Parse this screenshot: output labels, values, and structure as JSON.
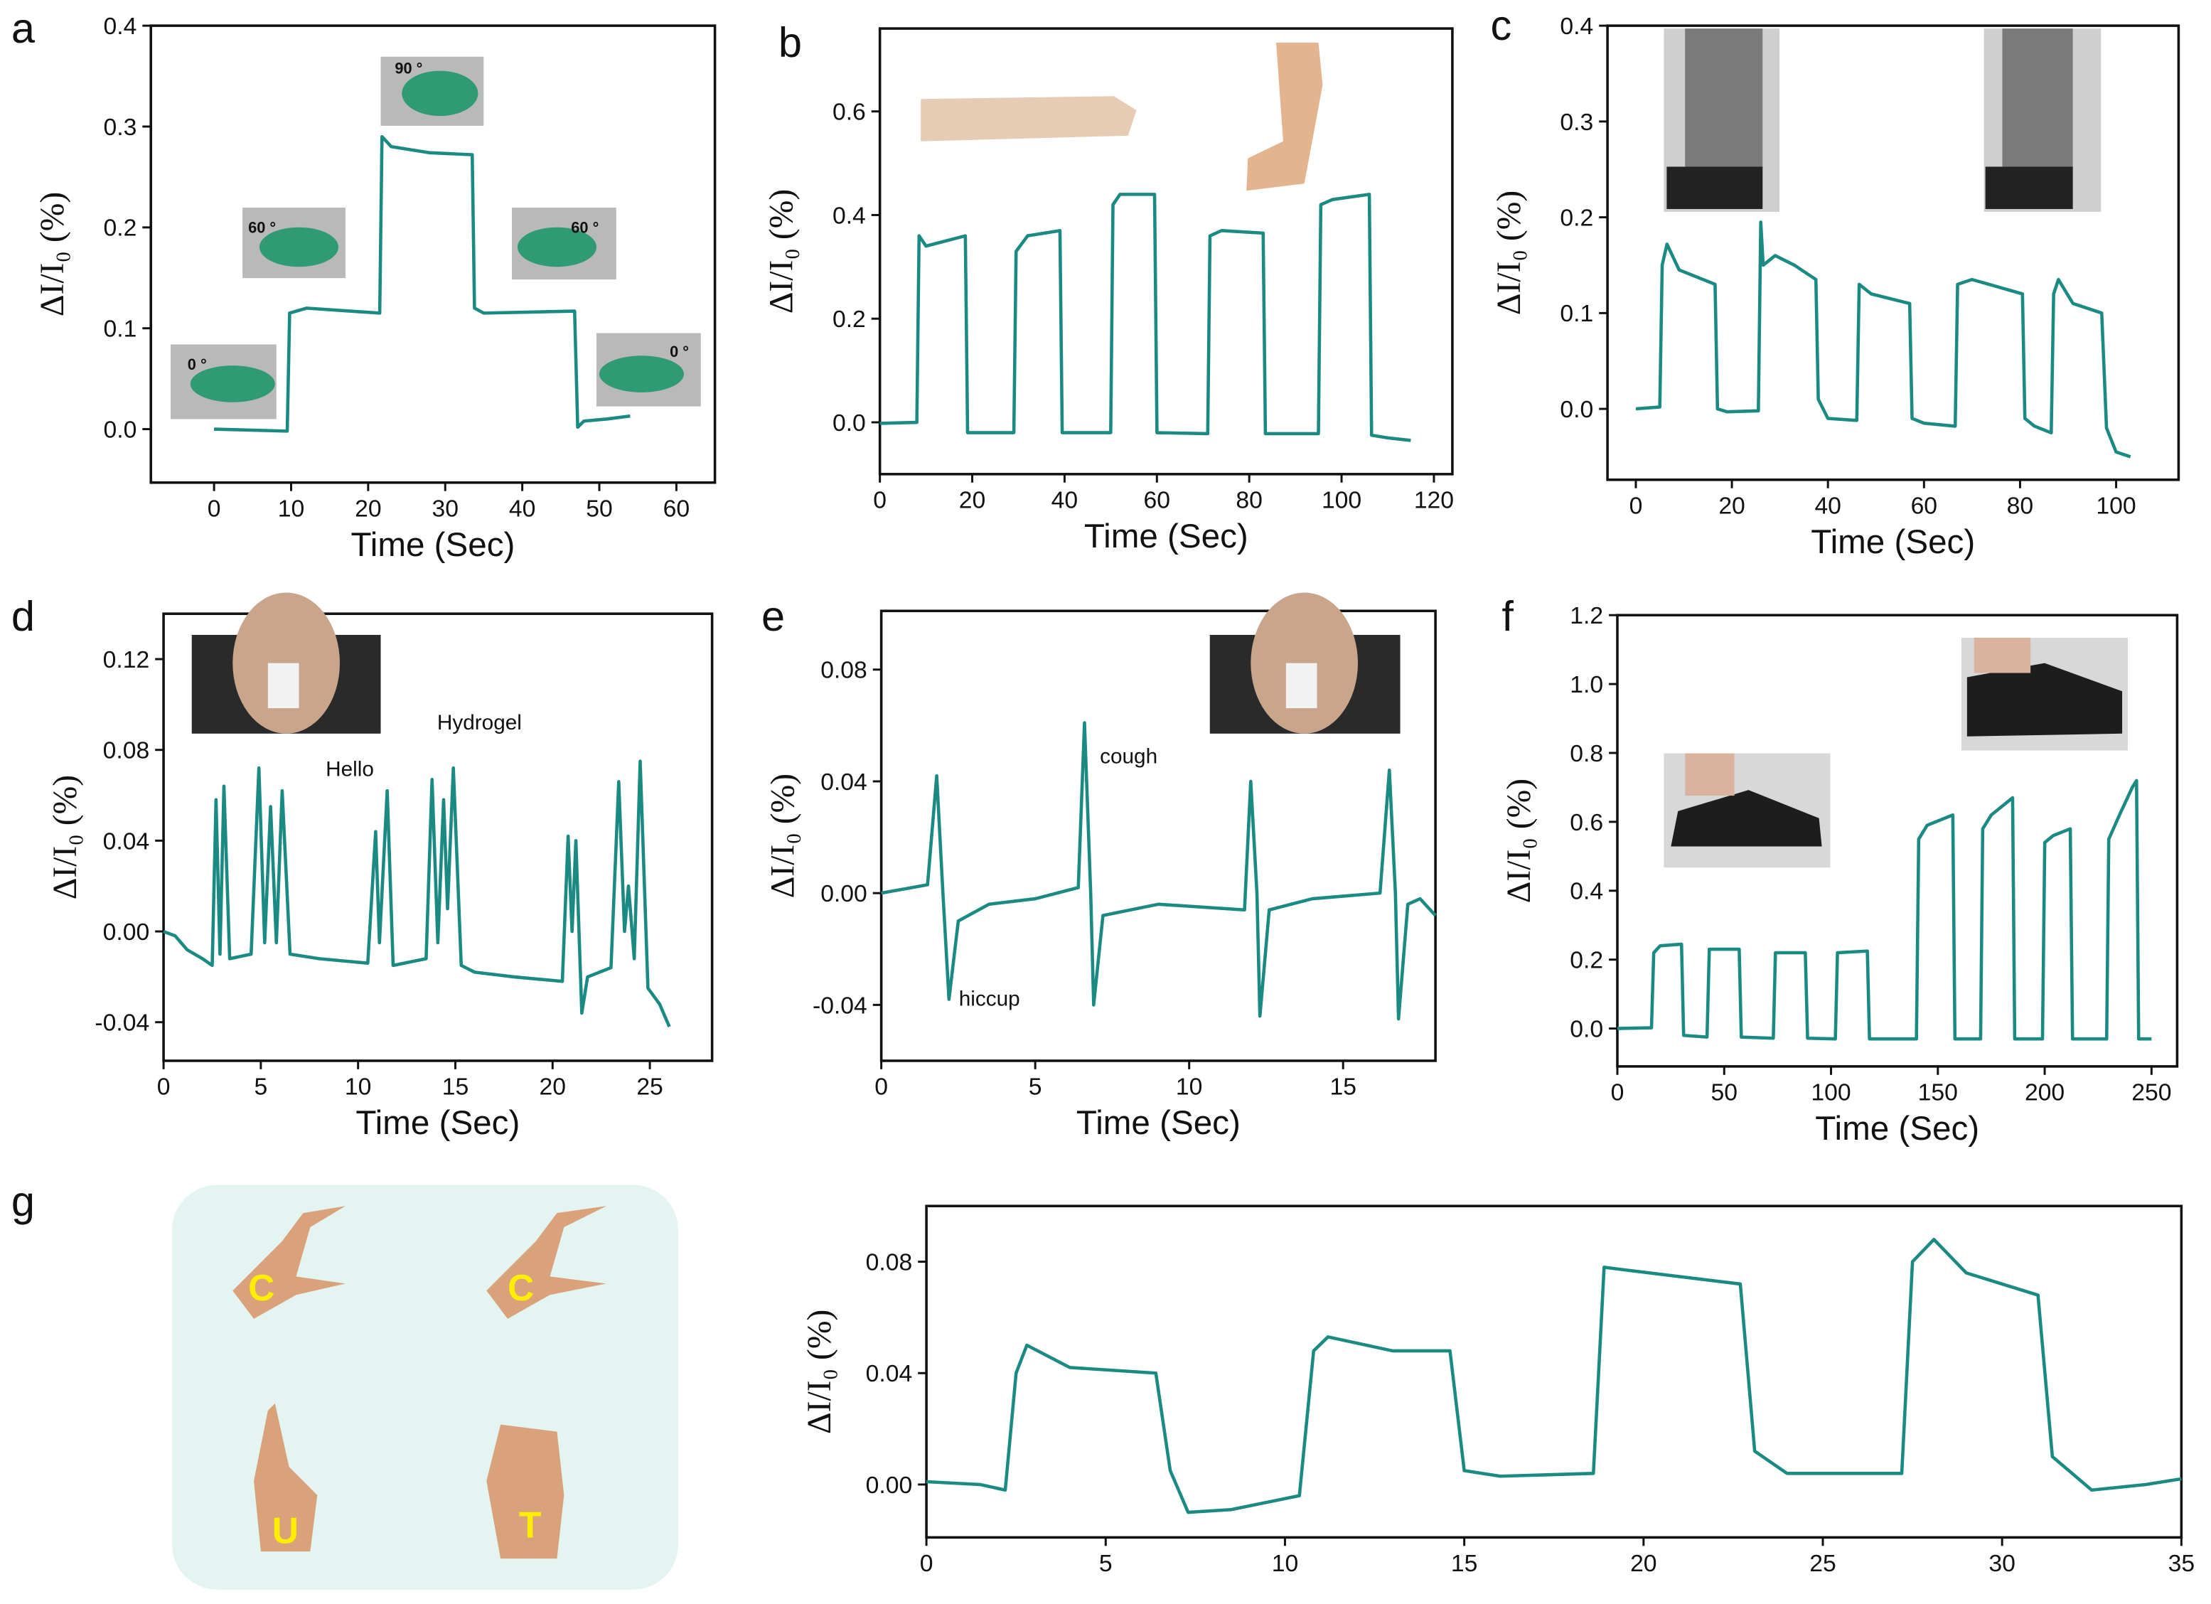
{
  "colors": {
    "trace": "#1a8a82",
    "gesture_panel_bg": "#e3f4f1",
    "letter": "#ffee00"
  },
  "panel_letters": [
    "a",
    "b",
    "c",
    "d",
    "e",
    "f",
    "g"
  ],
  "annotations": {
    "a": [
      "0 °",
      "60 °",
      "90 °",
      "60 °",
      "0 °"
    ],
    "d": {
      "hydrogel": "Hydrogel",
      "hello": "Hello"
    },
    "e": {
      "cough": "cough",
      "hiccup": "hiccup"
    },
    "g_letters": [
      "C",
      "C",
      "U",
      "T"
    ]
  },
  "chart_data": [
    {
      "panel": "a",
      "type": "line",
      "xlabel": "Time (Sec)",
      "ylabel": "ΔI/I₀ (%)",
      "xlim": [
        -8.2,
        65
      ],
      "ylim": [
        -0.053,
        0.4
      ],
      "xticks": [
        "0",
        "10",
        "20",
        "30",
        "40",
        "50",
        "60"
      ],
      "yticks": [
        "0.0",
        "0.1",
        "0.2",
        "0.3",
        "0.4"
      ],
      "points": [
        [
          0,
          0
        ],
        [
          9.5,
          -0.002
        ],
        [
          9.8,
          0.115
        ],
        [
          12,
          0.12
        ],
        [
          21.5,
          0.115
        ],
        [
          21.8,
          0.29
        ],
        [
          23,
          0.28
        ],
        [
          28,
          0.274
        ],
        [
          33.5,
          0.272
        ],
        [
          33.8,
          0.12
        ],
        [
          35,
          0.115
        ],
        [
          46.8,
          0.117
        ],
        [
          47.2,
          0.002
        ],
        [
          48,
          0.008
        ],
        [
          51,
          0.01
        ],
        [
          54,
          0.013
        ]
      ]
    },
    {
      "panel": "b",
      "type": "line",
      "xlabel": "Time (Sec)",
      "ylabel": "ΔI/I₀ (%)",
      "xlim": [
        0,
        124
      ],
      "ylim": [
        -0.1,
        0.76
      ],
      "xticks": [
        "0",
        "20",
        "40",
        "60",
        "80",
        "100",
        "120"
      ],
      "yticks": [
        "0.0",
        "0.2",
        "0.4",
        "0.6"
      ],
      "points": [
        [
          0,
          -0.002
        ],
        [
          8,
          0
        ],
        [
          8.5,
          0.36
        ],
        [
          10,
          0.34
        ],
        [
          18.5,
          0.36
        ],
        [
          19,
          -0.02
        ],
        [
          29,
          -0.02
        ],
        [
          29.5,
          0.33
        ],
        [
          32,
          0.36
        ],
        [
          39,
          0.37
        ],
        [
          39.5,
          -0.02
        ],
        [
          50,
          -0.02
        ],
        [
          50.5,
          0.42
        ],
        [
          52,
          0.44
        ],
        [
          59.5,
          0.44
        ],
        [
          60,
          -0.02
        ],
        [
          71,
          -0.022
        ],
        [
          71.5,
          0.36
        ],
        [
          74,
          0.37
        ],
        [
          83,
          0.365
        ],
        [
          83.5,
          -0.022
        ],
        [
          95,
          -0.022
        ],
        [
          95.5,
          0.42
        ],
        [
          98,
          0.43
        ],
        [
          106,
          0.44
        ],
        [
          106.5,
          -0.025
        ],
        [
          110,
          -0.03
        ],
        [
          115,
          -0.035
        ]
      ]
    },
    {
      "panel": "c",
      "type": "line",
      "xlabel": "Time (Sec)",
      "ylabel": "ΔI/I₀ (%)",
      "xlim": [
        -5.9,
        113
      ],
      "ylim": [
        -0.074,
        0.4
      ],
      "xticks": [
        "0",
        "20",
        "40",
        "60",
        "80",
        "100"
      ],
      "yticks": [
        "0.0",
        "0.1",
        "0.2",
        "0.3",
        "0.4"
      ],
      "points": [
        [
          0,
          0
        ],
        [
          5,
          0.002
        ],
        [
          5.5,
          0.15
        ],
        [
          6.5,
          0.172
        ],
        [
          9,
          0.145
        ],
        [
          16.5,
          0.13
        ],
        [
          17,
          0.0
        ],
        [
          19,
          -0.003
        ],
        [
          25.5,
          -0.002
        ],
        [
          26,
          0.195
        ],
        [
          26.5,
          0.15
        ],
        [
          29,
          0.16
        ],
        [
          33,
          0.15
        ],
        [
          37.5,
          0.135
        ],
        [
          38,
          0.01
        ],
        [
          40,
          -0.01
        ],
        [
          46,
          -0.012
        ],
        [
          46.5,
          0.13
        ],
        [
          49,
          0.12
        ],
        [
          57,
          0.11
        ],
        [
          57.5,
          -0.01
        ],
        [
          60,
          -0.015
        ],
        [
          66.5,
          -0.018
        ],
        [
          67,
          0.13
        ],
        [
          70,
          0.135
        ],
        [
          80.5,
          0.12
        ],
        [
          81,
          -0.01
        ],
        [
          83,
          -0.018
        ],
        [
          86.5,
          -0.025
        ],
        [
          87,
          0.12
        ],
        [
          88,
          0.135
        ],
        [
          91,
          0.11
        ],
        [
          97,
          0.1
        ],
        [
          98,
          -0.02
        ],
        [
          100,
          -0.045
        ],
        [
          103,
          -0.05
        ]
      ]
    },
    {
      "panel": "d",
      "type": "line",
      "xlabel": "Time (Sec)",
      "ylabel": "ΔI/I₀ (%)",
      "xlim": [
        0,
        28.2
      ],
      "ylim": [
        -0.057,
        0.14
      ],
      "xticks": [
        "0",
        "5",
        "10",
        "15",
        "20",
        "25"
      ],
      "yticks": [
        "-0.04",
        "0.00",
        "0.04",
        "0.08",
        "0.12"
      ],
      "points": [
        [
          0,
          0
        ],
        [
          0.6,
          -0.002
        ],
        [
          1.2,
          -0.008
        ],
        [
          2,
          -0.012
        ],
        [
          2.5,
          -0.015
        ],
        [
          2.7,
          0.058
        ],
        [
          2.9,
          -0.01
        ],
        [
          3.1,
          0.064
        ],
        [
          3.4,
          -0.012
        ],
        [
          4.5,
          -0.01
        ],
        [
          4.9,
          0.072
        ],
        [
          5.2,
          -0.005
        ],
        [
          5.5,
          0.055
        ],
        [
          5.8,
          -0.005
        ],
        [
          6.1,
          0.062
        ],
        [
          6.5,
          -0.01
        ],
        [
          8,
          -0.012
        ],
        [
          10.5,
          -0.014
        ],
        [
          10.9,
          0.044
        ],
        [
          11.1,
          -0.005
        ],
        [
          11.5,
          0.062
        ],
        [
          11.8,
          -0.015
        ],
        [
          13.5,
          -0.012
        ],
        [
          13.8,
          0.067
        ],
        [
          14.1,
          -0.005
        ],
        [
          14.4,
          0.058
        ],
        [
          14.6,
          0.01
        ],
        [
          14.9,
          0.072
        ],
        [
          15.3,
          -0.015
        ],
        [
          16,
          -0.018
        ],
        [
          18,
          -0.02
        ],
        [
          20.5,
          -0.022
        ],
        [
          20.8,
          0.042
        ],
        [
          21,
          0.0
        ],
        [
          21.2,
          0.04
        ],
        [
          21.5,
          -0.036
        ],
        [
          21.8,
          -0.02
        ],
        [
          23,
          -0.016
        ],
        [
          23.4,
          0.066
        ],
        [
          23.7,
          0.0
        ],
        [
          23.9,
          0.02
        ],
        [
          24.2,
          -0.012
        ],
        [
          24.5,
          0.075
        ],
        [
          24.9,
          -0.025
        ],
        [
          25.5,
          -0.032
        ],
        [
          26,
          -0.042
        ]
      ]
    },
    {
      "panel": "e",
      "type": "line",
      "xlabel": "Time (Sec)",
      "ylabel": "ΔI/I₀ (%)",
      "xlim": [
        0,
        18
      ],
      "ylim": [
        -0.06,
        0.101
      ],
      "xticks": [
        "0",
        "5",
        "10",
        "15"
      ],
      "yticks": [
        "-0.04",
        "0.00",
        "0.04",
        "0.08"
      ],
      "points": [
        [
          0,
          0
        ],
        [
          1.5,
          0.003
        ],
        [
          1.8,
          0.042
        ],
        [
          2.0,
          0.0
        ],
        [
          2.2,
          -0.038
        ],
        [
          2.5,
          -0.01
        ],
        [
          3.5,
          -0.004
        ],
        [
          5,
          -0.002
        ],
        [
          6.4,
          0.002
        ],
        [
          6.6,
          0.061
        ],
        [
          6.8,
          0.0
        ],
        [
          6.9,
          -0.04
        ],
        [
          7.2,
          -0.008
        ],
        [
          9,
          -0.004
        ],
        [
          11.8,
          -0.006
        ],
        [
          12,
          0.04
        ],
        [
          12.2,
          0.0
        ],
        [
          12.3,
          -0.044
        ],
        [
          12.6,
          -0.006
        ],
        [
          14,
          -0.002
        ],
        [
          16.2,
          0.0
        ],
        [
          16.5,
          0.044
        ],
        [
          16.7,
          0.0
        ],
        [
          16.8,
          -0.045
        ],
        [
          17.1,
          -0.004
        ],
        [
          17.5,
          -0.002
        ],
        [
          18,
          -0.008
        ]
      ]
    },
    {
      "panel": "f",
      "type": "line",
      "xlabel": "Time (Sec)",
      "ylabel": "ΔI/I₀ (%)",
      "xlim": [
        0,
        262
      ],
      "ylim": [
        -0.11,
        1.2
      ],
      "xticks": [
        "0",
        "50",
        "100",
        "150",
        "200",
        "250"
      ],
      "yticks": [
        "0.0",
        "0.2",
        "0.4",
        "0.6",
        "0.8",
        "1.0",
        "1.2"
      ],
      "points": [
        [
          0,
          0
        ],
        [
          16,
          0.002
        ],
        [
          17,
          0.22
        ],
        [
          20,
          0.24
        ],
        [
          30,
          0.245
        ],
        [
          31,
          -0.02
        ],
        [
          42,
          -0.025
        ],
        [
          43,
          0.23
        ],
        [
          57,
          0.23
        ],
        [
          58,
          -0.025
        ],
        [
          73,
          -0.028
        ],
        [
          74,
          0.22
        ],
        [
          88,
          0.22
        ],
        [
          89,
          -0.028
        ],
        [
          102,
          -0.03
        ],
        [
          103,
          0.22
        ],
        [
          117,
          0.225
        ],
        [
          118,
          -0.03
        ],
        [
          140,
          -0.03
        ],
        [
          141,
          0.55
        ],
        [
          145,
          0.59
        ],
        [
          157,
          0.62
        ],
        [
          158,
          -0.03
        ],
        [
          170,
          -0.03
        ],
        [
          171,
          0.58
        ],
        [
          175,
          0.62
        ],
        [
          185,
          0.67
        ],
        [
          186,
          -0.03
        ],
        [
          199,
          -0.03
        ],
        [
          200,
          0.54
        ],
        [
          204,
          0.56
        ],
        [
          212,
          0.58
        ],
        [
          213,
          -0.03
        ],
        [
          229,
          -0.03
        ],
        [
          230,
          0.55
        ],
        [
          235,
          0.62
        ],
        [
          241,
          0.7
        ],
        [
          243,
          0.72
        ],
        [
          244,
          -0.03
        ],
        [
          250,
          -0.03
        ]
      ]
    },
    {
      "panel": "g",
      "type": "line",
      "xlabel": "",
      "ylabel": "ΔI/I₀ (%)",
      "xlim": [
        0,
        35
      ],
      "ylim": [
        -0.019,
        0.1
      ],
      "xticks": [
        "0",
        "5",
        "10",
        "15",
        "20",
        "25",
        "30",
        "35"
      ],
      "yticks": [
        "0.00",
        "0.04",
        "0.08"
      ],
      "points": [
        [
          0,
          0.001
        ],
        [
          1.5,
          0
        ],
        [
          2.2,
          -0.002
        ],
        [
          2.5,
          0.04
        ],
        [
          2.8,
          0.05
        ],
        [
          4,
          0.042
        ],
        [
          6.4,
          0.04
        ],
        [
          6.8,
          0.005
        ],
        [
          7.3,
          -0.01
        ],
        [
          8.5,
          -0.009
        ],
        [
          10.4,
          -0.004
        ],
        [
          10.8,
          0.048
        ],
        [
          11.2,
          0.053
        ],
        [
          13,
          0.048
        ],
        [
          14.6,
          0.048
        ],
        [
          15,
          0.005
        ],
        [
          16,
          0.003
        ],
        [
          18.6,
          0.004
        ],
        [
          18.9,
          0.078
        ],
        [
          19.5,
          0.077
        ],
        [
          22.7,
          0.072
        ],
        [
          23.1,
          0.012
        ],
        [
          24,
          0.004
        ],
        [
          27.2,
          0.004
        ],
        [
          27.5,
          0.08
        ],
        [
          28.1,
          0.088
        ],
        [
          29,
          0.076
        ],
        [
          31,
          0.068
        ],
        [
          31.4,
          0.01
        ],
        [
          32.5,
          -0.002
        ],
        [
          34,
          0
        ],
        [
          35,
          0.002
        ]
      ]
    }
  ]
}
